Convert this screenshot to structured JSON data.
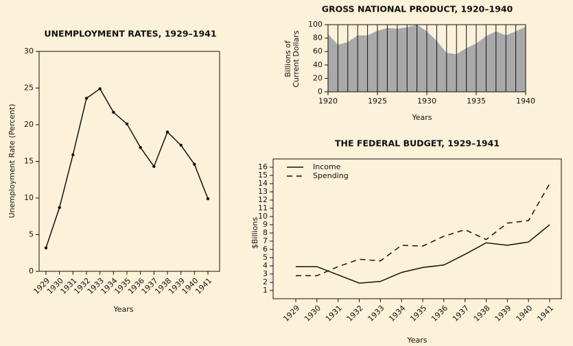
{
  "chart_data": [
    {
      "type": "line",
      "title": "UNEMPLOYMENT RATES, 1929–1941",
      "x_label": "Years",
      "y_label": "Unemployment Rate (Percent)",
      "categories": [
        "1929",
        "1930",
        "1931",
        "1932",
        "1933",
        "1934",
        "1935",
        "1936",
        "1937",
        "1938",
        "1939",
        "1940",
        "1941"
      ],
      "series": [
        {
          "name": "Unemployment Rate",
          "color": "#111111",
          "line_style": "solid",
          "values": [
            3.2,
            8.7,
            15.9,
            23.6,
            24.9,
            21.7,
            20.1,
            16.9,
            14.3,
            19.0,
            17.2,
            14.6,
            9.9
          ]
        }
      ],
      "markers": true,
      "ylim": [
        0,
        30
      ],
      "yticks": [
        0,
        5,
        10,
        15,
        20,
        25,
        30
      ]
    },
    {
      "type": "area",
      "title": "GROSS NATIONAL PRODUCT, 1920–1940",
      "x_label": "Years",
      "y_label": [
        "Billions of",
        "Current Dollars"
      ],
      "x": [
        1920,
        1921,
        1922,
        1923,
        1924,
        1925,
        1926,
        1927,
        1928,
        1929,
        1930,
        1931,
        1932,
        1933,
        1934,
        1935,
        1936,
        1937,
        1938,
        1939,
        1940
      ],
      "values": [
        86,
        70,
        74,
        84,
        84,
        91,
        95,
        94,
        96,
        100,
        90,
        76,
        58,
        56,
        65,
        72,
        83,
        90,
        84,
        90,
        97
      ],
      "color": "#a9a9a9",
      "grid": true,
      "xlim": [
        1920,
        1940
      ],
      "xticks": [
        1920,
        1925,
        1930,
        1935,
        1940
      ],
      "ylim": [
        0,
        100
      ],
      "yticks": [
        0,
        20,
        40,
        60,
        80,
        100
      ]
    },
    {
      "type": "line",
      "title": "THE FEDERAL BUDGET, 1929–1941",
      "x_label": "Years",
      "y_label": "$Billions",
      "categories": [
        "1929",
        "1930",
        "1931",
        "1932",
        "1933",
        "1934",
        "1935",
        "1936",
        "1937",
        "1938",
        "1939",
        "1940",
        "1941"
      ],
      "series": [
        {
          "name": "Income",
          "color": "#111111",
          "line_style": "solid",
          "values": [
            3.9,
            3.9,
            2.9,
            1.9,
            2.1,
            3.2,
            3.8,
            4.1,
            5.4,
            6.8,
            6.5,
            6.9,
            9.0
          ]
        },
        {
          "name": "Spending",
          "color": "#111111",
          "line_style": "dashed",
          "values": [
            2.8,
            2.8,
            3.9,
            4.8,
            4.6,
            6.5,
            6.4,
            7.6,
            8.4,
            7.2,
            9.2,
            9.5,
            14.0
          ]
        }
      ],
      "legend": "upper left",
      "ylim": [
        0,
        17
      ],
      "yticks": [
        1,
        2,
        3,
        4,
        5,
        6,
        7,
        8,
        9,
        10,
        11,
        12,
        13,
        14,
        15,
        16
      ]
    }
  ]
}
